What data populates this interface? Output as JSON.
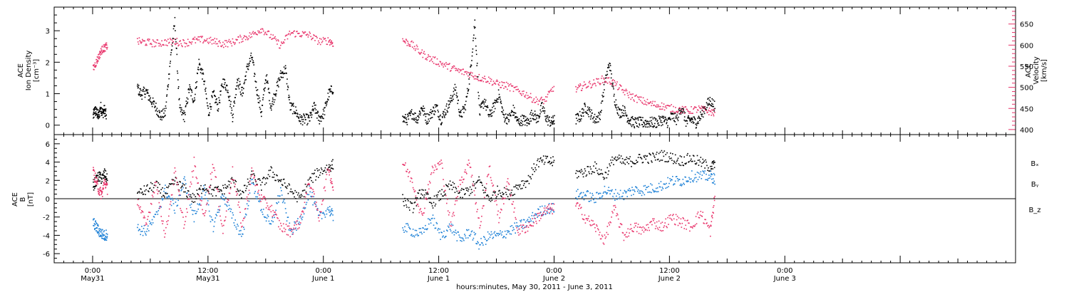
{
  "colors": {
    "black": "#000000",
    "pink": "#e8336a",
    "blue": "#1a7fd6"
  },
  "chart_data": [
    {
      "type": "scatter",
      "panel": "top",
      "ylabel_left": [
        "ACE",
        "Ion Density",
        "[cm⁻³]"
      ],
      "ylabel_right": [
        "ACE",
        "Velocity",
        "[km/s]"
      ],
      "ylim_left": [
        -0.3,
        3.75
      ],
      "ylim_right": [
        388,
        690
      ],
      "yticks_left": [
        "0",
        "1",
        "2",
        "3"
      ],
      "yticks_right": [
        "400",
        "450",
        "500",
        "550",
        "600",
        "650"
      ],
      "series": [
        {
          "axis": "left",
          "color": "black",
          "segments": [
            {
              "x": [
                0.0,
                0.18,
                0.38,
                0.58,
                0.78,
                0.98,
                1.18,
                1.38
              ],
              "y": [
                0.3,
                0.5,
                0.4,
                0.3,
                0.6,
                0.4,
                0.5,
                0.3
              ]
            },
            {
              "x": [
                4.6,
                5.0,
                5.5,
                6.0,
                6.5,
                7.0,
                7.5,
                8.0,
                8.5,
                9.0,
                9.5,
                10.0,
                10.5,
                11.0,
                11.5,
                12.0,
                12.5,
                13.0,
                13.5,
                14.0,
                14.5,
                15.0,
                15.5,
                16.0,
                16.5,
                17.0,
                17.5,
                18.0,
                18.5,
                19.0,
                19.5,
                20.0,
                20.5,
                21.0,
                21.5,
                22.0,
                22.5,
                23.0,
                23.5,
                24.0,
                24.5,
                25.0
              ],
              "y": [
                1.2,
                1.0,
                1.1,
                0.8,
                0.6,
                0.3,
                0.4,
                2.0,
                3.3,
                0.5,
                0.3,
                1.2,
                0.8,
                2.0,
                1.5,
                0.4,
                1.0,
                0.6,
                1.4,
                1.2,
                0.3,
                1.5,
                1.0,
                1.8,
                2.2,
                1.2,
                0.4,
                1.6,
                0.6,
                1.1,
                1.6,
                1.8,
                0.6,
                0.5,
                0.2,
                0.2,
                0.2,
                0.6,
                0.2,
                0.4,
                1.0,
                1.2
              ]
            },
            {
              "x": [
                32.2,
                32.7,
                33.2,
                33.7,
                34.2,
                34.7,
                35.2,
                35.7,
                36.2,
                36.7,
                37.2,
                37.7,
                38.2,
                38.7,
                39.2,
                39.7,
                40.2,
                40.7,
                41.2,
                41.7,
                42.2,
                42.7,
                43.2,
                43.7,
                44.2,
                44.7,
                45.2,
                45.7,
                46.2,
                46.7,
                47.2,
                47.7,
                48.0
              ],
              "y": [
                0.2,
                0.2,
                0.4,
                0.2,
                0.6,
                0.2,
                0.4,
                0.6,
                0.2,
                0.5,
                0.8,
                1.2,
                0.3,
                0.6,
                1.6,
                3.3,
                0.4,
                0.8,
                0.3,
                0.6,
                1.0,
                0.3,
                0.2,
                0.5,
                0.1,
                0.2,
                0.1,
                0.4,
                0.2,
                0.6,
                0.2,
                0.1,
                0.2
              ]
            },
            {
              "x": [
                50.2,
                50.7,
                51.2,
                51.7,
                52.2,
                52.7,
                53.2,
                53.7,
                54.2,
                54.7,
                55.2,
                55.7,
                56.2,
                56.7,
                57.2,
                57.7,
                58.2,
                58.7,
                59.2,
                59.7,
                60.2,
                60.7,
                61.2,
                61.7,
                62.2,
                62.7,
                63.2,
                63.7,
                64.2,
                64.7
              ],
              "y": [
                0.2,
                0.3,
                0.6,
                0.4,
                0.2,
                0.3,
                1.3,
                2.0,
                0.9,
                0.4,
                0.5,
                0.2,
                0.1,
                0.1,
                0.1,
                0.1,
                0.1,
                0.1,
                0.2,
                0.1,
                0.3,
                0.2,
                0.6,
                0.1,
                0.2,
                0.1,
                0.3,
                0.6,
                0.8,
                0.6
              ]
            }
          ]
        },
        {
          "axis": "right",
          "color": "pink",
          "segments": [
            {
              "x": [
                0.0,
                0.3,
                0.6,
                0.9,
                1.2,
                1.5
              ],
              "y": [
                545,
                560,
                575,
                590,
                595,
                600
              ]
            },
            {
              "x": [
                4.6,
                5.5,
                6.5,
                7.5,
                8.5,
                9.5,
                10.5,
                11.5,
                12.5,
                13.5,
                14.5,
                15.5,
                16.5,
                17.5,
                18.5,
                19.5,
                20.5,
                21.5,
                22.5,
                23.5,
                24.5,
                25.0
              ],
              "y": [
                610,
                608,
                605,
                608,
                610,
                606,
                612,
                614,
                610,
                604,
                608,
                618,
                625,
                640,
                622,
                600,
                630,
                628,
                625,
                610,
                612,
                605
              ]
            },
            {
              "x": [
                32.2,
                33.0,
                34.0,
                35.0,
                36.0,
                37.0,
                38.0,
                39.0,
                40.0,
                41.0,
                42.0,
                43.0,
                44.0,
                45.0,
                46.0,
                47.0,
                48.0
              ],
              "y": [
                612,
                605,
                585,
                570,
                560,
                550,
                540,
                535,
                525,
                520,
                510,
                505,
                495,
                485,
                470,
                470,
                505
              ]
            },
            {
              "x": [
                50.2,
                51.0,
                52.0,
                53.0,
                54.0,
                55.0,
                56.0,
                57.0,
                58.0,
                59.0,
                60.0,
                61.0,
                62.0,
                63.0,
                64.0,
                64.7
              ],
              "y": [
                495,
                505,
                510,
                520,
                515,
                495,
                480,
                470,
                462,
                458,
                452,
                448,
                446,
                450,
                445,
                440
              ]
            }
          ]
        }
      ]
    },
    {
      "type": "scatter",
      "panel": "bottom",
      "ylabel_left": [
        "ACE",
        "B",
        "[nT]"
      ],
      "ylim": [
        -7,
        7
      ],
      "yticks": [
        "-6",
        "-4",
        "-2",
        "0",
        "2",
        "4",
        "6"
      ],
      "legend": [
        "Bₓ",
        "Bᵧ",
        "B_z"
      ],
      "series": [
        {
          "name": "Bₓ",
          "color": "black",
          "segments": [
            {
              "x": [
                0.0,
                0.3,
                0.6,
                0.9,
                1.2,
                1.5
              ],
              "y": [
                1.5,
                2.0,
                2.5,
                2.2,
                2.8,
                2.0
              ]
            },
            {
              "x": [
                4.6,
                5.5,
                6.5,
                7.5,
                8.5,
                9.5,
                10.5,
                11.5,
                12.5,
                13.5,
                14.5,
                15.5,
                16.5,
                17.5,
                18.5,
                19.5,
                20.5,
                21.5,
                22.5,
                23.5,
                24.5,
                25.0
              ],
              "y": [
                0.5,
                1.0,
                1.5,
                0.5,
                2.0,
                1.0,
                0.0,
                1.5,
                0.8,
                1.0,
                2.0,
                0.5,
                2.5,
                1.5,
                3.0,
                2.0,
                1.0,
                0.0,
                2.0,
                3.0,
                3.5,
                3.8
              ]
            },
            {
              "x": [
                32.2,
                33.2,
                34.2,
                35.2,
                36.2,
                37.2,
                38.2,
                39.2,
                40.2,
                41.2,
                42.2,
                43.2,
                44.2,
                45.2,
                46.2,
                47.2,
                48.0
              ],
              "y": [
                0.0,
                -1.0,
                1.0,
                -0.5,
                0.5,
                1.5,
                0.5,
                1.0,
                2.0,
                0.0,
                1.0,
                0.5,
                1.5,
                2.0,
                4.0,
                4.2,
                4.0
              ]
            },
            {
              "x": [
                50.2,
                51.2,
                52.2,
                53.2,
                54.2,
                55.2,
                56.2,
                57.2,
                58.2,
                59.2,
                60.2,
                61.2,
                62.2,
                63.2,
                64.2,
                64.7
              ],
              "y": [
                2.8,
                3.0,
                3.5,
                2.5,
                4.5,
                4.0,
                4.2,
                4.5,
                4.5,
                4.8,
                4.5,
                4.2,
                4.5,
                4.0,
                3.5,
                3.8
              ]
            }
          ]
        },
        {
          "name": "Bᵧ",
          "color": "blue",
          "segments": [
            {
              "x": [
                0.0,
                0.3,
                0.6,
                0.9,
                1.2,
                1.5
              ],
              "y": [
                -2.5,
                -3.0,
                -3.5,
                -3.8,
                -4.0,
                -3.8
              ]
            },
            {
              "x": [
                4.6,
                5.5,
                6.5,
                7.5,
                8.5,
                9.5,
                10.5,
                11.5,
                12.5,
                13.5,
                14.5,
                15.5,
                16.5,
                17.5,
                18.5,
                19.5,
                20.5,
                21.5,
                22.5,
                23.5,
                24.5,
                25.0
              ],
              "y": [
                -3.2,
                -3.5,
                -2.0,
                1.0,
                -1.0,
                2.0,
                -2.0,
                1.0,
                -3.0,
                0.5,
                -2.0,
                -4.0,
                2.0,
                -1.0,
                -3.0,
                1.0,
                -3.5,
                -2.5,
                1.0,
                -2.0,
                -1.0,
                -2.0
              ]
            },
            {
              "x": [
                32.2,
                33.2,
                34.2,
                35.2,
                36.2,
                37.2,
                38.2,
                39.2,
                40.2,
                41.2,
                42.2,
                43.2,
                44.2,
                45.2,
                46.2,
                47.2,
                48.0
              ],
              "y": [
                -3.0,
                -3.5,
                -3.8,
                -2.0,
                -4.0,
                -3.0,
                -4.5,
                -3.5,
                -5.0,
                -4.0,
                -4.0,
                -3.5,
                -3.0,
                -2.5,
                -1.5,
                -1.0,
                -1.0
              ]
            },
            {
              "x": [
                50.2,
                51.2,
                52.2,
                53.2,
                54.2,
                55.2,
                56.2,
                57.2,
                58.2,
                59.2,
                60.2,
                61.2,
                62.2,
                63.2,
                64.2,
                64.7
              ],
              "y": [
                0.5,
                0.5,
                0.0,
                1.0,
                0.5,
                0.5,
                1.0,
                1.0,
                1.2,
                1.5,
                2.0,
                2.0,
                2.5,
                2.5,
                2.5,
                2.2
              ]
            }
          ]
        },
        {
          "name": "B_z",
          "color": "pink",
          "segments": [
            {
              "x": [
                0.0,
                0.3,
                0.6,
                0.9,
                1.2,
                1.5
              ],
              "y": [
                3.0,
                2.0,
                1.0,
                0.5,
                2.0,
                1.0
              ]
            },
            {
              "x": [
                4.6,
                5.5,
                6.5,
                7.5,
                8.5,
                9.5,
                10.5,
                11.5,
                12.5,
                13.5,
                14.5,
                15.5,
                16.5,
                17.5,
                18.5,
                19.5,
                20.5,
                21.5,
                22.5,
                23.5,
                24.5,
                25.0
              ],
              "y": [
                0.0,
                -3.0,
                2.0,
                -4.0,
                3.0,
                -3.0,
                4.0,
                -2.0,
                4.0,
                -3.5,
                3.0,
                -3.0,
                3.0,
                0.0,
                -1.0,
                -3.0,
                -3.5,
                -2.5,
                2.0,
                -2.0,
                3.5,
                1.0
              ]
            },
            {
              "x": [
                32.2,
                33.2,
                34.2,
                35.2,
                36.2,
                37.2,
                38.2,
                39.2,
                40.2,
                41.2,
                42.2,
                43.2,
                44.2,
                45.2,
                46.2,
                47.2,
                48.0
              ],
              "y": [
                4.0,
                2.0,
                -2.0,
                3.0,
                4.0,
                -3.0,
                2.0,
                4.0,
                -3.0,
                3.5,
                -2.0,
                2.0,
                -3.5,
                -3.0,
                -2.0,
                -1.2,
                -1.0
              ]
            },
            {
              "x": [
                50.2,
                51.2,
                52.2,
                53.2,
                54.2,
                55.2,
                56.2,
                57.2,
                58.2,
                59.2,
                60.2,
                61.2,
                62.2,
                63.2,
                64.2,
                64.7
              ],
              "y": [
                -0.5,
                -2.0,
                -3.0,
                -4.5,
                -1.0,
                -4.0,
                -3.0,
                -3.5,
                -2.5,
                -3.0,
                -2.0,
                -2.5,
                -3.0,
                -1.5,
                -3.5,
                0.5
              ]
            }
          ]
        }
      ]
    }
  ],
  "x_axis": {
    "range_hours": [
      -4.0,
      96.0
    ],
    "ticks": [
      {
        "hour": 0,
        "time": "0:00",
        "date": "May31"
      },
      {
        "hour": 12,
        "time": "12:00",
        "date": "May31"
      },
      {
        "hour": 24,
        "time": "0:00",
        "date": "June 1"
      },
      {
        "hour": 36,
        "time": "12:00",
        "date": "June 1"
      },
      {
        "hour": 48,
        "time": "0:00",
        "date": "June 2"
      },
      {
        "hour": 60,
        "time": "12:00",
        "date": "June 2"
      },
      {
        "hour": 72,
        "time": "0:00",
        "date": "June 3"
      }
    ],
    "label": "hours:minutes, May 30, 2011 - June  3, 2011"
  }
}
